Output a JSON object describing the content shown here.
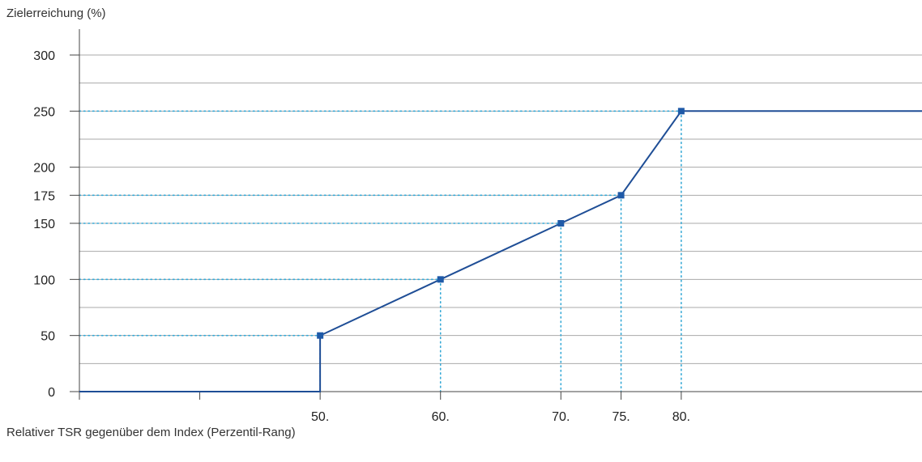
{
  "chart_data": {
    "type": "line",
    "title": "",
    "ylabel": "Zielerreichung (%)",
    "xlabel": "Relativer TSR gegenüber dem Index (Perzentil-Rang)",
    "xlim": [
      30,
      100
    ],
    "ylim": [
      0,
      300
    ],
    "y_ticks": [
      0,
      50,
      100,
      150,
      175,
      200,
      250,
      300
    ],
    "y_tick_labels": [
      "0",
      "50",
      "100",
      "150",
      "175",
      "200",
      "250",
      "300"
    ],
    "y_gridlines": [
      25,
      50,
      75,
      100,
      125,
      150,
      175,
      200,
      225,
      250,
      275,
      300
    ],
    "x_ticks": [
      30,
      40,
      50,
      60,
      70,
      75,
      80
    ],
    "x_tick_labels": [
      "",
      "",
      "50.",
      "60.",
      "70.",
      "75.",
      "80."
    ],
    "grid": true,
    "series": [
      {
        "x": [
          30,
          50,
          50,
          60,
          70,
          75,
          80,
          100
        ],
        "y": [
          0,
          0,
          50,
          100,
          150,
          175,
          250,
          250
        ]
      }
    ],
    "markers": [
      {
        "x": 50,
        "y": 50
      },
      {
        "x": 60,
        "y": 100
      },
      {
        "x": 70,
        "y": 150
      },
      {
        "x": 75,
        "y": 175
      },
      {
        "x": 80,
        "y": 250
      }
    ],
    "colors": {
      "line": "#1f4e96",
      "marker": "#1f5aa8",
      "guides": "#36a9d6",
      "grid": "#aaaaaa",
      "axis": "#444444"
    }
  }
}
